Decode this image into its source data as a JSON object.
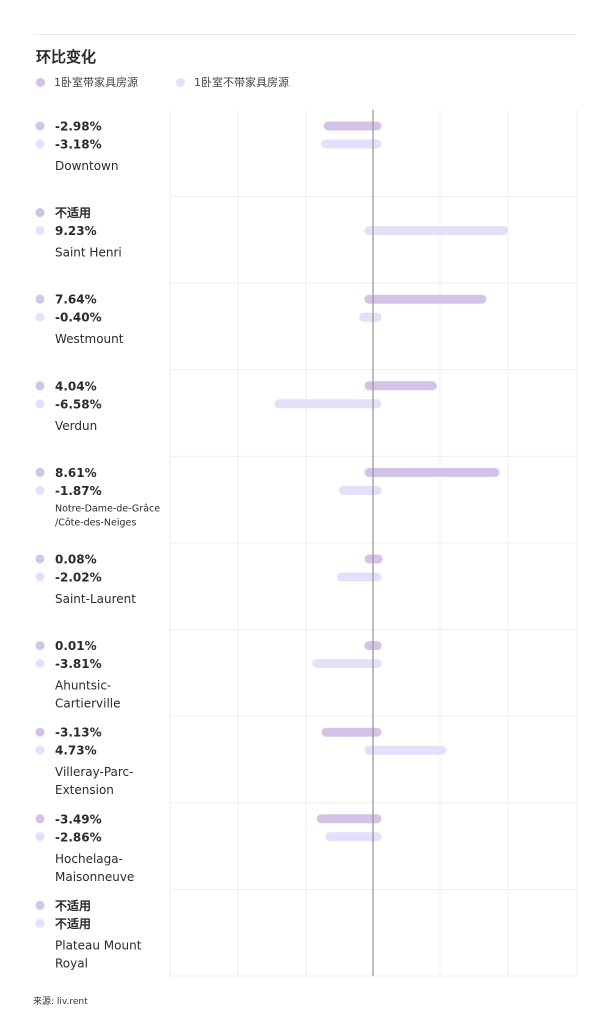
{
  "chart_data": {
    "type": "bar",
    "title": "环比变化",
    "orientation": "horizontal",
    "series": [
      {
        "name": "1卧室带家具房源",
        "color": "#d3c3e6",
        "values": [
          -2.98,
          null,
          7.64,
          4.04,
          8.61,
          0.08,
          0.01,
          -3.13,
          -3.49,
          null
        ],
        "labels": [
          "-2.98%",
          "不适用",
          "7.64%",
          "4.04%",
          "8.61%",
          "0.08%",
          "0.01%",
          "-3.13%",
          "-3.49%",
          "不适用"
        ]
      },
      {
        "name": "1卧室不带家具房源",
        "color": "#e5e0fa",
        "values": [
          -3.18,
          9.23,
          -0.4,
          -6.58,
          -1.87,
          -2.02,
          -3.81,
          4.73,
          -2.86,
          null
        ],
        "labels": [
          "-3.18%",
          "9.23%",
          "-0.40%",
          "-6.58%",
          "-1.87%",
          "-2.02%",
          "-3.81%",
          "4.73%",
          "-2.86%",
          "不适用"
        ]
      }
    ],
    "categories": [
      [
        "Downtown"
      ],
      [
        "Saint Henri"
      ],
      [
        "Westmount"
      ],
      [
        "Verdun"
      ],
      [
        "Notre-Dame-de-Grâce",
        "/Côte-des-Neiges"
      ],
      [
        "Saint-Laurent"
      ],
      [
        "Ahuntsic-",
        "Cartierville"
      ],
      [
        "Villeray-Parc-",
        "Extension"
      ],
      [
        "Hochelaga-",
        "Maisonneuve"
      ],
      [
        "Plateau Mount",
        "Royal"
      ]
    ],
    "xlim": [
      -15,
      15
    ],
    "grid": true,
    "legend_position": "top-left"
  },
  "source": "来源: liv.rent"
}
